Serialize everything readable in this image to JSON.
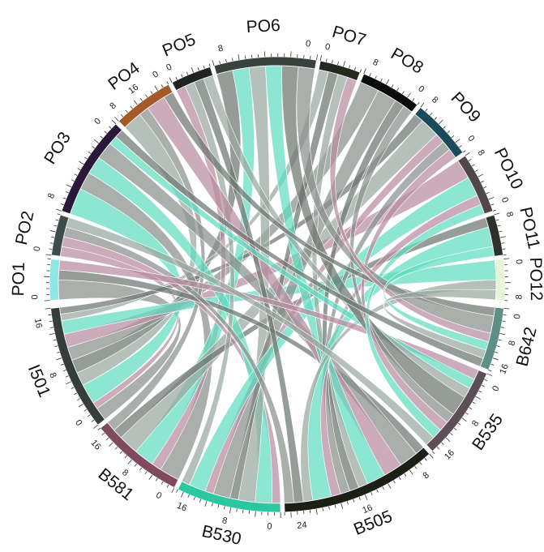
{
  "chart_data": {
    "type": "chord",
    "title": "",
    "segments": [
      {
        "name": "PO1",
        "value": 4,
        "color": "#8fe6e4",
        "ticks": [
          "0"
        ]
      },
      {
        "name": "PO2",
        "value": 4,
        "color": "#3f4c4c",
        "ticks": [
          "0"
        ]
      },
      {
        "name": "PO3",
        "value": 10,
        "color": "#2b1838",
        "ticks": [
          "8",
          "0"
        ]
      },
      {
        "name": "PO4",
        "value": 6,
        "color": "#a35a28",
        "ticks": [
          "8",
          "16",
          "0"
        ]
      },
      {
        "name": "PO5",
        "value": 4,
        "color": "#1f2421",
        "ticks": [
          "0"
        ]
      },
      {
        "name": "PO6",
        "value": 10,
        "color": "#3a423d",
        "ticks": [
          "8",
          "0"
        ]
      },
      {
        "name": "PO7",
        "value": 4,
        "color": "#24281e",
        "ticks": [
          "0"
        ]
      },
      {
        "name": "PO8",
        "value": 6,
        "color": "#0b0c0c",
        "ticks": [
          "8",
          "0"
        ]
      },
      {
        "name": "PO9",
        "value": 6,
        "color": "#1b4a5a",
        "ticks": [
          "8",
          "0"
        ]
      },
      {
        "name": "PO10",
        "value": 6,
        "color": "#504748",
        "ticks": [
          "8",
          "0"
        ]
      },
      {
        "name": "PO11",
        "value": 4,
        "color": "#2d302b",
        "ticks": [
          "8"
        ]
      },
      {
        "name": "PO12",
        "value": 4,
        "color": "#e6f5d6",
        "ticks": [
          "0",
          "8"
        ]
      },
      {
        "name": "B642",
        "value": 12,
        "color": "#5e8f84",
        "ticks": [
          "0",
          "8",
          "16"
        ]
      },
      {
        "name": "B535",
        "value": 18,
        "color": "#5e4e58",
        "ticks": [
          "0",
          "8",
          "16"
        ]
      },
      {
        "name": "B505",
        "value": 30,
        "color": "#1c1f14",
        "ticks": [
          "8",
          "16",
          "24"
        ]
      },
      {
        "name": "B530",
        "value": 20,
        "color": "#2ac7a0",
        "ticks": [
          "0",
          "8",
          "16"
        ]
      },
      {
        "name": "B581",
        "value": 18,
        "color": "#7f4a5d",
        "ticks": [
          "0",
          "8",
          "16"
        ]
      },
      {
        "name": "I501",
        "value": 24,
        "color": "#353e3a",
        "ticks": [
          "0",
          "8",
          "16"
        ]
      }
    ],
    "ribbon_palette": [
      "#8a908c",
      "#b88ca0",
      "#5fdcc0",
      "#9aa89f",
      "#6d7770"
    ],
    "links": [
      [
        "I501",
        "PO1",
        2
      ],
      [
        "I501",
        "PO2",
        1
      ],
      [
        "I501",
        "PO3",
        3
      ],
      [
        "I501",
        "PO4",
        2
      ],
      [
        "I501",
        "PO6",
        2
      ],
      [
        "I501",
        "PO8",
        2
      ],
      [
        "I501",
        "PO10",
        2
      ],
      [
        "I501",
        "PO12",
        2
      ],
      [
        "I501",
        "PO7",
        1
      ],
      [
        "I501",
        "PO9",
        1
      ],
      [
        "B581",
        "PO3",
        2
      ],
      [
        "B581",
        "PO5",
        1
      ],
      [
        "B581",
        "PO6",
        2
      ],
      [
        "B581",
        "PO9",
        2
      ],
      [
        "B581",
        "PO11",
        1
      ],
      [
        "B581",
        "PO4",
        1
      ],
      [
        "B530",
        "PO2",
        1
      ],
      [
        "B530",
        "PO3",
        2
      ],
      [
        "B530",
        "PO6",
        2
      ],
      [
        "B530",
        "PO7",
        1
      ],
      [
        "B530",
        "PO8",
        2
      ],
      [
        "B530",
        "PO9",
        1
      ],
      [
        "B530",
        "PO10",
        2
      ],
      [
        "B530",
        "PO5",
        1
      ],
      [
        "B505",
        "PO1",
        1
      ],
      [
        "B505",
        "PO3",
        2
      ],
      [
        "B505",
        "PO4",
        2
      ],
      [
        "B505",
        "PO6",
        2
      ],
      [
        "B505",
        "PO7",
        1
      ],
      [
        "B505",
        "PO8",
        1
      ],
      [
        "B505",
        "PO9",
        1
      ],
      [
        "B505",
        "PO10",
        1
      ],
      [
        "B505",
        "PO11",
        2
      ],
      [
        "B505",
        "PO12",
        1
      ],
      [
        "B505",
        "PO5",
        1
      ],
      [
        "B505",
        "PO2",
        1
      ],
      [
        "B535",
        "PO1",
        1
      ],
      [
        "B535",
        "PO3",
        1
      ],
      [
        "B535",
        "PO5",
        1
      ],
      [
        "B535",
        "PO6",
        2
      ],
      [
        "B535",
        "PO8",
        1
      ],
      [
        "B535",
        "PO9",
        1
      ],
      [
        "B535",
        "PO10",
        1
      ],
      [
        "B535",
        "PO2",
        1
      ],
      [
        "B642",
        "PO4",
        1
      ],
      [
        "B642",
        "PO6",
        2
      ],
      [
        "B642",
        "PO7",
        1
      ],
      [
        "B642",
        "PO11",
        1
      ],
      [
        "B642",
        "PO12",
        1
      ],
      [
        "B642",
        "PO3",
        1
      ]
    ]
  }
}
